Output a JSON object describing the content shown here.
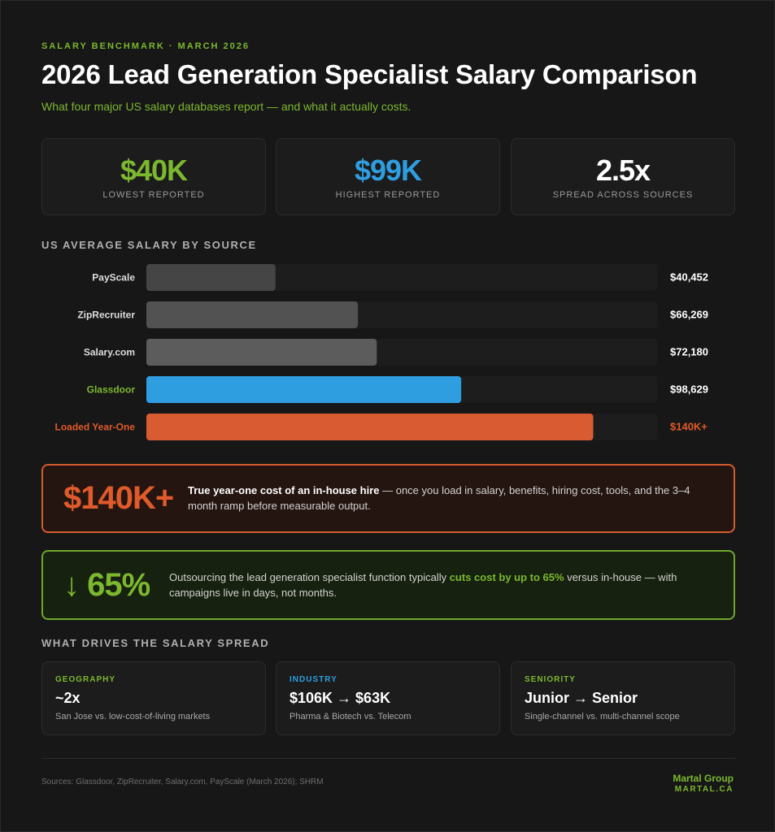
{
  "header": {
    "kicker": "SALARY BENCHMARK · MARCH 2026",
    "title": "2026 Lead Generation Specialist Salary Comparison",
    "subtitle": "What four major US salary databases report — and what it actually costs."
  },
  "stats": [
    {
      "value": "$40K",
      "label": "LOWEST REPORTED",
      "color": "#7cb82f"
    },
    {
      "value": "$99K",
      "label": "HIGHEST REPORTED",
      "color": "#2e9ee0"
    },
    {
      "value": "2.5x",
      "label": "SPREAD ACROSS SOURCES",
      "color": "#ffffff"
    }
  ],
  "chart_section_title": "US AVERAGE SALARY BY SOURCE",
  "chart_data": {
    "type": "bar",
    "orientation": "horizontal",
    "categories": [
      "PayScale",
      "ZipRecruiter",
      "Salary.com",
      "Glassdoor",
      "Loaded Year-One"
    ],
    "values": [
      40452,
      66269,
      72180,
      98629,
      140000
    ],
    "value_labels": [
      "$40,452",
      "$66,269",
      "$72,180",
      "$98,629",
      "$140K+"
    ],
    "xlim": [
      0,
      160000
    ],
    "bar_colors": [
      "#454545",
      "#525252",
      "#5c5c5c",
      "#2e9ee0",
      "#d95b32"
    ],
    "label_colors": [
      "#dddddd",
      "#dddddd",
      "#dddddd",
      "#7cb82f",
      "#e05a2b"
    ],
    "value_colors": [
      "#ffffff",
      "#ffffff",
      "#ffffff",
      "#ffffff",
      "#e05a2b"
    ],
    "grid": false
  },
  "cost_callout": {
    "big": "$140K+",
    "bold": "True year-one cost of an in-house hire",
    "rest": " — once you load in salary, benefits, hiring cost, tools, and the 3–4 month ramp before measurable output."
  },
  "savings_callout": {
    "big": "↓ 65%",
    "pre": "Outsourcing the lead generation specialist function typically ",
    "highlight": "cuts cost by up to 65%",
    "post": " versus in-house — with campaigns live in days, not months."
  },
  "drivers_section_title": "WHAT DRIVES THE SALARY SPREAD",
  "drivers": [
    {
      "category": "GEOGRAPHY",
      "headline": "~2x",
      "desc": "San Jose vs. low-cost-of-living markets",
      "color": "#7cb82f"
    },
    {
      "category": "INDUSTRY",
      "headline": "$106K → $63K",
      "desc": "Pharma & Biotech vs. Telecom",
      "color": "#2e9ee0"
    },
    {
      "category": "SENIORITY",
      "headline": "Junior → Senior",
      "desc": "Single-channel vs. multi-channel scope",
      "color": "#7cb82f"
    }
  ],
  "footer": {
    "sources": "Sources: Glassdoor, ZipRecruiter, Salary.com, PayScale (March 2026); SHRM",
    "brand_name": "Martal Group",
    "brand_site": "MARTAL.CA"
  }
}
